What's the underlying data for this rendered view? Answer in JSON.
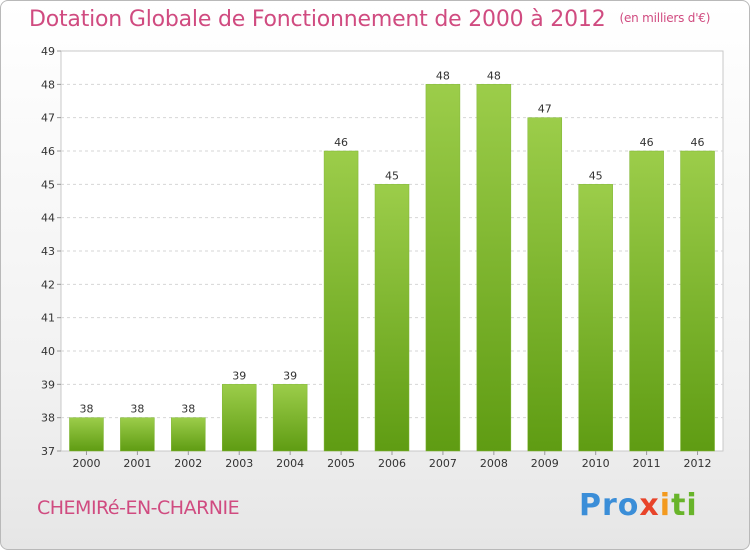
{
  "header": {
    "title": "Dotation Globale de Fonctionnement de 2000 à 2012",
    "subtitle": "(en milliers d'€)"
  },
  "footer": {
    "commune": "CHEMIRé-EN-CHARNIE",
    "logo": [
      "Pro",
      "x",
      "i",
      "ti"
    ]
  },
  "colors": {
    "bar_top": "#9ccd4a",
    "bar_bottom": "#5f9c13",
    "title": "#d04b80"
  },
  "chart_data": {
    "type": "bar",
    "title": "Dotation Globale de Fonctionnement de 2000 à 2012",
    "subtitle": "(en milliers d'€)",
    "categories": [
      "2000",
      "2001",
      "2002",
      "2003",
      "2004",
      "2005",
      "2006",
      "2007",
      "2008",
      "2009",
      "2010",
      "2011",
      "2012"
    ],
    "values": [
      38,
      38,
      38,
      39,
      39,
      46,
      45,
      48,
      48,
      47,
      45,
      46,
      46
    ],
    "ylim": [
      37,
      49
    ],
    "yticks": [
      37,
      38,
      39,
      40,
      41,
      42,
      43,
      44,
      45,
      46,
      47,
      48,
      49
    ],
    "grid": true,
    "xlabel": "",
    "ylabel": ""
  }
}
